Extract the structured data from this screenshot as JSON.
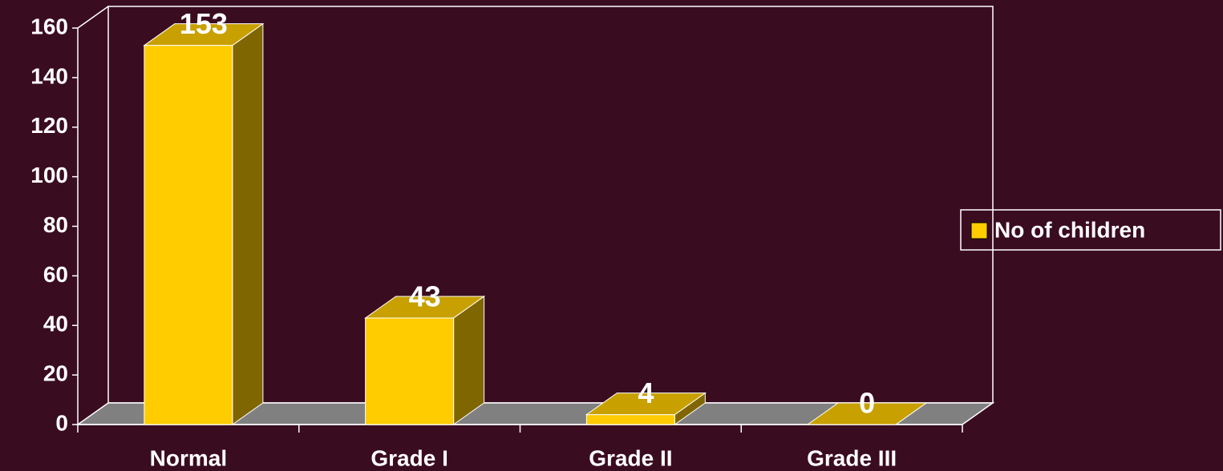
{
  "chart_data": {
    "type": "bar3d",
    "categories": [
      "Normal",
      "Grade I",
      "Grade II",
      "Grade III"
    ],
    "series": [
      {
        "name": "No of children",
        "color": "#ffcc00",
        "values": [
          153,
          43,
          4,
          0
        ]
      }
    ],
    "ylim": [
      0,
      160
    ],
    "yticks": [
      0,
      20,
      40,
      60,
      80,
      100,
      120,
      140,
      160
    ],
    "legend": "right"
  }
}
